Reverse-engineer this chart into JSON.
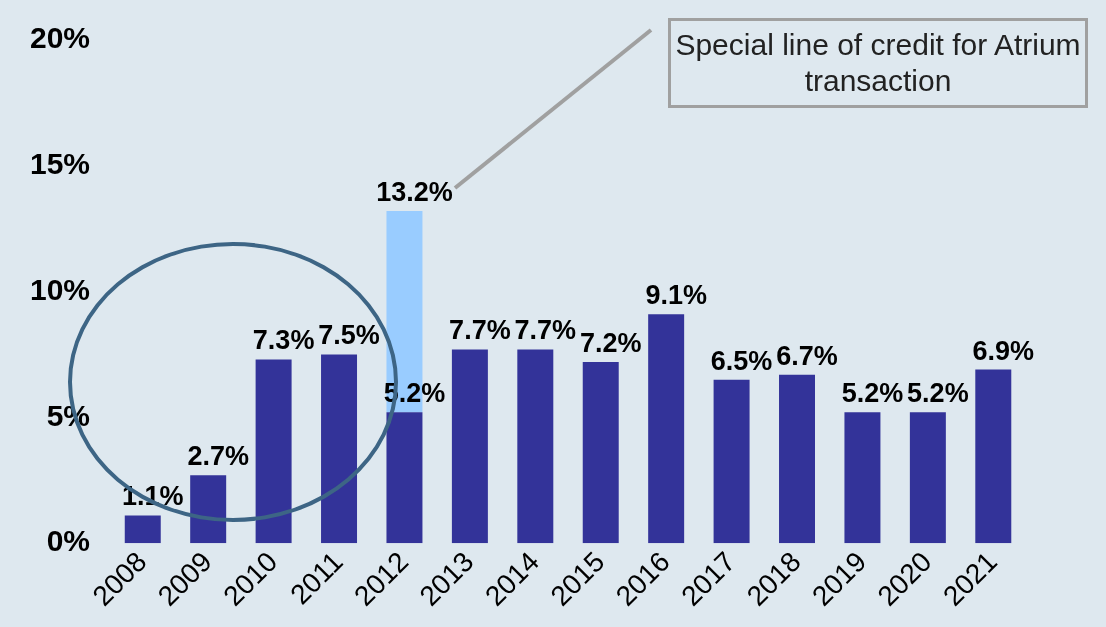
{
  "chart_data": {
    "type": "bar",
    "stacked": true,
    "categories": [
      "2008",
      "2009",
      "2010",
      "2011",
      "2012",
      "2013",
      "2014",
      "2015",
      "2016",
      "2017",
      "2018",
      "2019",
      "2020",
      "2021"
    ],
    "series": [
      {
        "color": "#333399",
        "values": [
          1.1,
          2.7,
          7.3,
          7.5,
          5.2,
          7.7,
          7.7,
          7.2,
          9.1,
          6.5,
          6.7,
          5.2,
          5.2,
          6.9
        ],
        "value_labels": [
          "1.1%",
          "2.7%",
          "7.3%",
          "7.5%",
          "5.2%",
          "7.7%",
          "7.7%",
          "7.2%",
          "9.1%",
          "6.5%",
          "6.7%",
          "5.2%",
          "5.2%",
          "6.9%"
        ]
      },
      {
        "color": "#99ccff",
        "values": [
          null,
          null,
          null,
          null,
          8.0,
          null,
          null,
          null,
          null,
          null,
          null,
          null,
          null,
          null
        ]
      }
    ],
    "totals": [
      null,
      null,
      null,
      null,
      "13.2%",
      null,
      null,
      null,
      null,
      null,
      null,
      null,
      null,
      null
    ],
    "ylim": [
      0,
      20
    ],
    "yticks": [
      {
        "value": 0,
        "label": "0%"
      },
      {
        "value": 5,
        "label": "5%"
      },
      {
        "value": 10,
        "label": "10%"
      },
      {
        "value": 15,
        "label": "15%"
      },
      {
        "value": 20,
        "label": "20%"
      }
    ],
    "grid": false,
    "legend": false,
    "annotations": [
      "Special line of credit for Atrium transaction"
    ]
  }
}
